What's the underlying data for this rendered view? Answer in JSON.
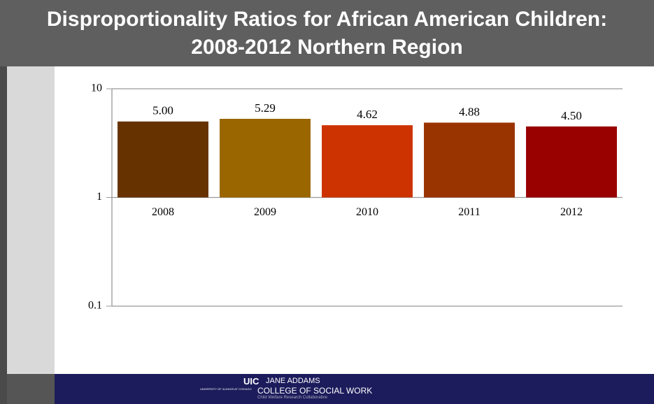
{
  "chart_data": {
    "type": "bar",
    "title": "Disproportionality Ratios for African American Children: 2008-2012 Northern Region",
    "categories": [
      "2008",
      "2009",
      "2010",
      "2011",
      "2012"
    ],
    "values": [
      5.0,
      5.29,
      4.62,
      4.88,
      4.5
    ],
    "value_labels": [
      "5.00",
      "5.29",
      "4.62",
      "4.88",
      "4.50"
    ],
    "colors": [
      "#663300",
      "#996600",
      "#cc3300",
      "#993300",
      "#990000"
    ],
    "ylim": [
      0.1,
      10
    ],
    "yticks": [
      0.1,
      1,
      10
    ],
    "log_scale": true,
    "grid": true
  },
  "footer": {
    "logo": "UIC",
    "name": "JANE ADDAMS",
    "college": "COLLEGE OF SOCIAL WORK",
    "university": "UNIVERSITY OF ILLINOIS AT CHICAGO",
    "unit": "Child Welfare Research Collaborative"
  }
}
